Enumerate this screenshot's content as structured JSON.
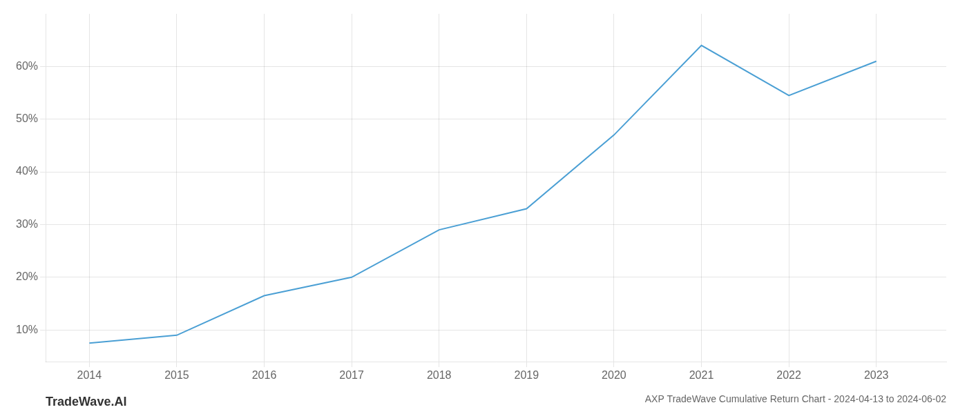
{
  "chart_data": {
    "type": "line",
    "title": "AXP TradeWave Cumulative Return Chart - 2024-04-13 to 2024-06-02",
    "annotations": [
      "TradeWave.AI"
    ],
    "x": [
      2014,
      2015,
      2016,
      2017,
      2018,
      2019,
      2020,
      2021,
      2022,
      2023
    ],
    "values": [
      7.5,
      9.0,
      16.5,
      20.0,
      29.0,
      33.0,
      47.0,
      64.0,
      54.5,
      61.0
    ],
    "color": "#4a9fd4",
    "xlim": [
      2013.5,
      2023.8
    ],
    "ylim": [
      4,
      70
    ],
    "xticks": [
      2014,
      2015,
      2016,
      2017,
      2018,
      2019,
      2020,
      2021,
      2022,
      2023
    ],
    "yticks": [
      {
        "value": 10,
        "label": "10%"
      },
      {
        "value": 20,
        "label": "20%"
      },
      {
        "value": 30,
        "label": "30%"
      },
      {
        "value": 40,
        "label": "40%"
      },
      {
        "value": 50,
        "label": "50%"
      },
      {
        "value": 60,
        "label": "60%"
      }
    ],
    "grid": true
  }
}
